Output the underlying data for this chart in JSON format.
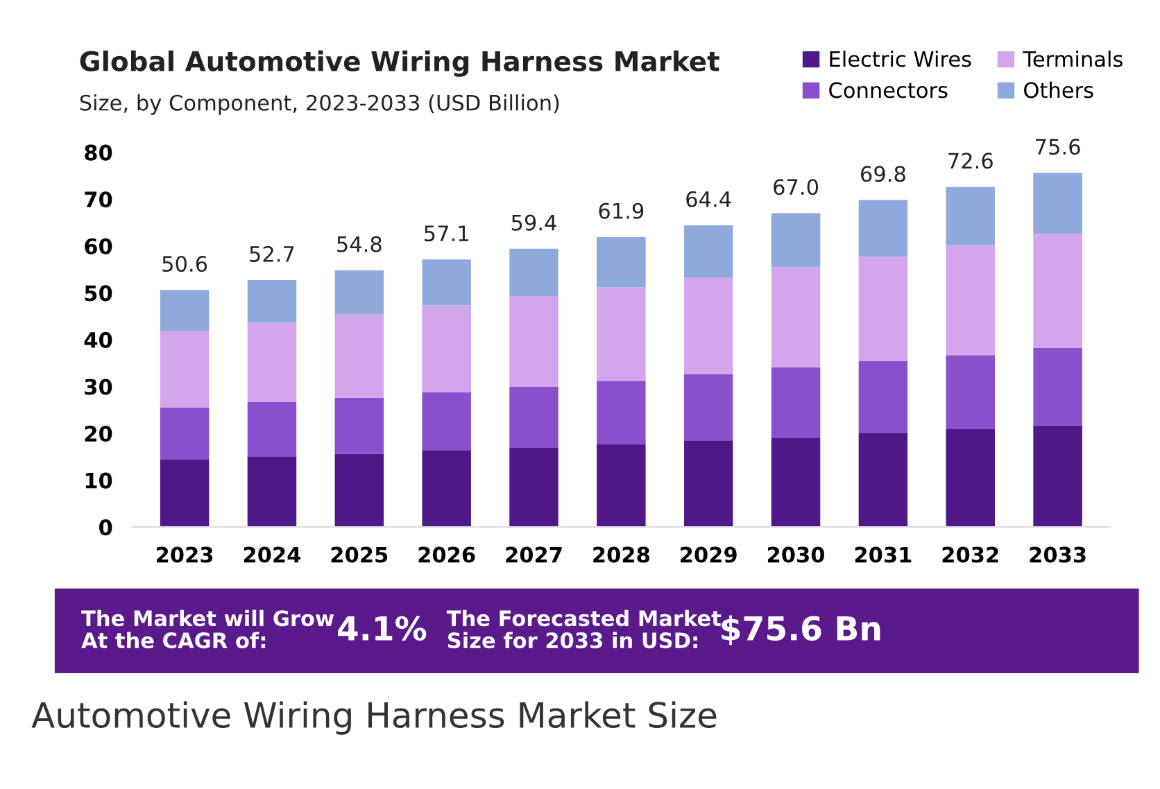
{
  "chart_data": {
    "type": "bar",
    "stacked": true,
    "title": "Global Automotive Wiring Harness Market",
    "subtitle": "Size, by Component, 2023-2033 (USD Billion)",
    "categories": [
      "2023",
      "2024",
      "2025",
      "2026",
      "2027",
      "2028",
      "2029",
      "2030",
      "2031",
      "2032",
      "2033"
    ],
    "series": [
      {
        "name": "Electric Wires",
        "color": "#4f1787",
        "values": [
          14.5,
          15.1,
          15.6,
          16.4,
          16.9,
          17.7,
          18.5,
          19.1,
          20.1,
          20.9,
          21.7
        ]
      },
      {
        "name": "Connectors",
        "color": "#8a4fcc",
        "values": [
          11.0,
          11.6,
          12.0,
          12.4,
          13.1,
          13.5,
          14.1,
          15.0,
          15.3,
          15.8,
          16.5
        ]
      },
      {
        "name": "Terminals",
        "color": "#d3a6ec",
        "values": [
          16.4,
          16.9,
          17.8,
          18.5,
          19.3,
          20.0,
          20.7,
          21.4,
          22.3,
          23.5,
          24.4
        ]
      },
      {
        "name": "Others",
        "color": "#8ea9dc",
        "values": [
          8.7,
          9.1,
          9.4,
          9.8,
          10.1,
          10.7,
          11.1,
          11.5,
          12.1,
          12.4,
          13.0
        ]
      }
    ],
    "totals": [
      "50.6",
      "52.7",
      "54.8",
      "57.1",
      "59.4",
      "61.9",
      "64.4",
      "67.0",
      "69.8",
      "72.6",
      "75.6"
    ],
    "ylim": [
      0,
      80
    ],
    "yticks": [
      0,
      10,
      20,
      30,
      40,
      50,
      60,
      70,
      80
    ],
    "grid": false,
    "legend": "top right",
    "annotations": [
      "The Market will Grow\nAt the CAGR of:",
      "4.1%",
      "The Forecasted Market\nSize for 2033 in USD:",
      "$75.6 Bn",
      "Automotive Wiring Harness Market Size"
    ]
  }
}
